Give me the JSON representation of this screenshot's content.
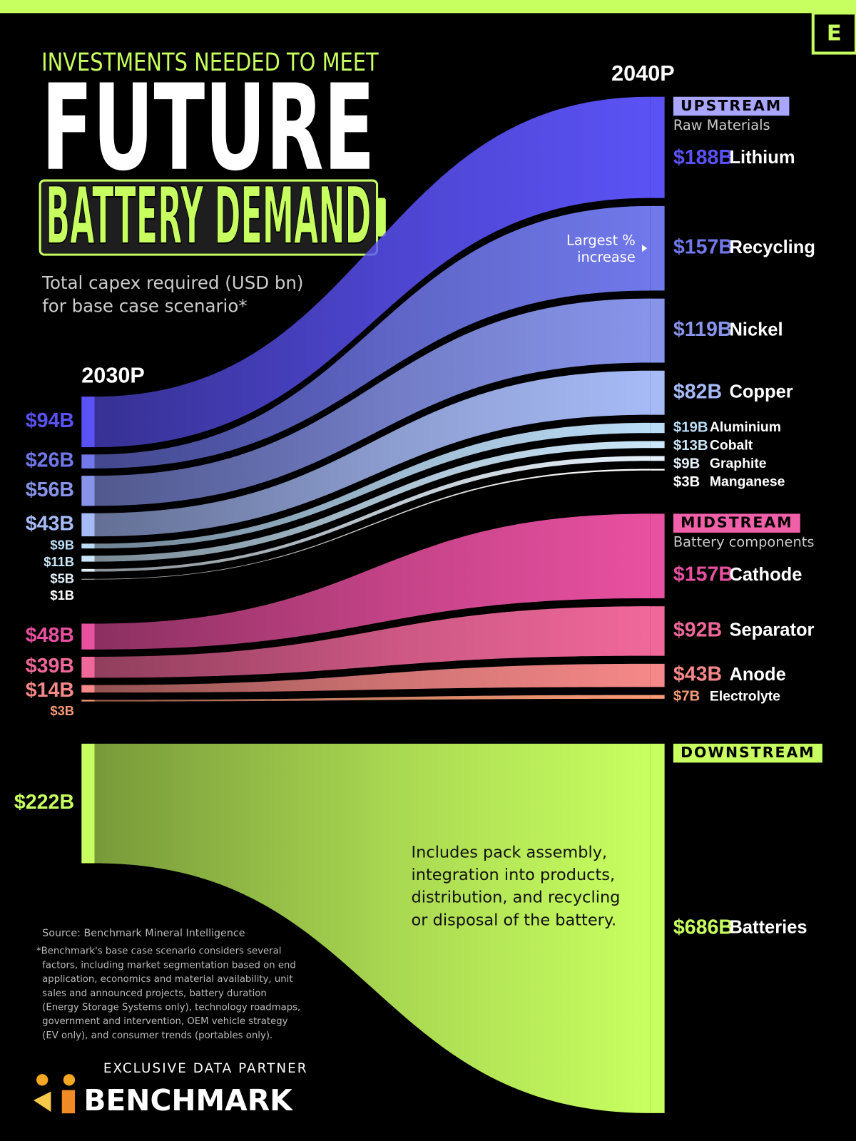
{
  "chart_data": {
    "type": "flow",
    "supertitle": "INVESTMENTS NEEDED TO MEET",
    "title": "FUTURE",
    "title_highlight": "BATTERY DEMAND",
    "subtitle": [
      "Total capex required (USD bn)",
      "for base case scenario*"
    ],
    "categories": [
      "2030P",
      "2040P"
    ],
    "groups": [
      {
        "name": "UPSTREAM",
        "subtitle": "Raw Materials",
        "color": "#aaa6ff",
        "series": [
          {
            "name": "Lithium",
            "color": "#5b52f5",
            "values": [
              94,
              188
            ],
            "value_labels": [
              "$94B",
              "$188B"
            ]
          },
          {
            "name": "Recycling",
            "color": "#7078ea",
            "values": [
              26,
              157
            ],
            "value_labels": [
              "$26B",
              "$157B"
            ],
            "note": [
              "Largest %",
              "increase"
            ]
          },
          {
            "name": "Nickel",
            "color": "#8794ea",
            "values": [
              56,
              119
            ],
            "value_labels": [
              "$56B",
              "$119B"
            ]
          },
          {
            "name": "Copper",
            "color": "#a6baf6",
            "values": [
              43,
              82
            ],
            "value_labels": [
              "$43B",
              "$82B"
            ]
          },
          {
            "name": "Aluminium",
            "color": "#badcf6",
            "values": [
              9,
              19
            ],
            "value_labels": [
              "$9B",
              "$19B"
            ]
          },
          {
            "name": "Cobalt",
            "color": "#cae6f8",
            "values": [
              11,
              13
            ],
            "value_labels": [
              "$11B",
              "$13B"
            ]
          },
          {
            "name": "Graphite",
            "color": "#e4f0fa",
            "values": [
              5,
              9
            ],
            "value_labels": [
              "$5B",
              "$9B"
            ]
          },
          {
            "name": "Manganese",
            "color": "#ffffff",
            "values": [
              1,
              3
            ],
            "value_labels": [
              "$1B",
              "$3B"
            ]
          }
        ]
      },
      {
        "name": "MIDSTREAM",
        "subtitle": "Battery components",
        "color": "#f060a8",
        "series": [
          {
            "name": "Cathode",
            "color": "#e850a0",
            "values": [
              48,
              157
            ],
            "value_labels": [
              "$48B",
              "$157B"
            ]
          },
          {
            "name": "Separator",
            "color": "#f0689a",
            "values": [
              39,
              92
            ],
            "value_labels": [
              "$39B",
              "$92B"
            ]
          },
          {
            "name": "Anode",
            "color": "#f58888",
            "values": [
              14,
              43
            ],
            "value_labels": [
              "$14B",
              "$43B"
            ]
          },
          {
            "name": "Electrolyte",
            "color": "#f89a78",
            "values": [
              3,
              7
            ],
            "value_labels": [
              "$3B",
              "$7B"
            ]
          }
        ]
      },
      {
        "name": "DOWNSTREAM",
        "color": "#c8ff60",
        "series": [
          {
            "name": "Batteries",
            "color": "#c8ff60",
            "values": [
              222,
              686
            ],
            "value_labels": [
              "$222B",
              "$686B"
            ],
            "note": [
              "Includes pack assembly,",
              "integration into products,",
              "distribution, and recycling",
              "or disposal of the battery."
            ]
          }
        ]
      }
    ],
    "source": "Source: Benchmark Mineral Intelligence",
    "footnote": [
      "*Benchmark's base case scenario considers several",
      "factors, including market segmentation based on end",
      "application, economics and material availability, unit",
      "sales and announced projects, battery duration",
      "(Energy Storage Systems only), technology roadmaps,",
      "government and intervention, OEM vehicle strategy",
      "(EV only), and consumer trends (portables only)."
    ],
    "partner": "EXCLUSIVE DATA PARTNER",
    "partner_name": "BENCHMARK",
    "logo": "E"
  }
}
